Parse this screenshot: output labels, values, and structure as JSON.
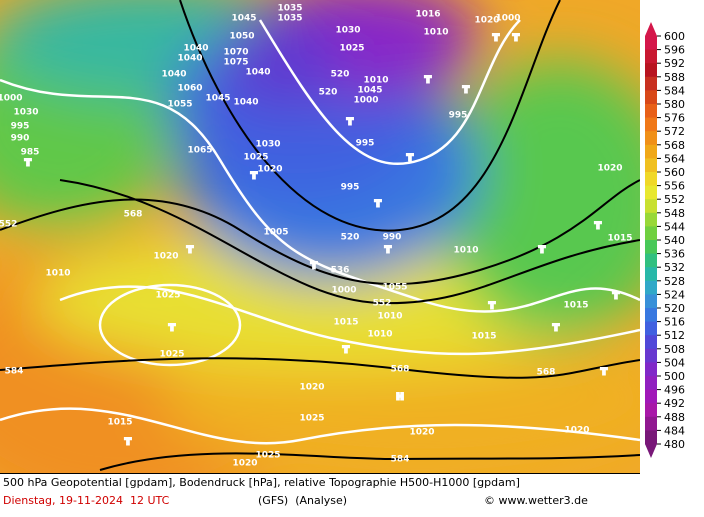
{
  "map": {
    "labels": [
      "1035",
      "1035",
      "1045",
      "1050",
      "1040",
      "1040",
      "1070",
      "1075",
      "1040",
      "1040",
      "1060",
      "1055",
      "1045",
      "1040",
      "1030",
      "1025",
      "520",
      "520",
      "1010",
      "1045",
      "1000",
      "1016",
      "1010",
      "1020",
      "1000",
      "995",
      "1000",
      "1030",
      "995",
      "990",
      "985",
      "1065",
      "1030",
      "1025",
      "1020",
      "995",
      "995",
      "1020",
      "568",
      "552",
      "1005",
      "520",
      "990",
      "1020",
      "1010",
      "1010",
      "536",
      "1000",
      "552",
      "1055",
      "1010",
      "1025",
      "1025",
      "1015",
      "1015",
      "1015",
      "1015",
      "1010",
      "568",
      "568",
      "584",
      "1020",
      "1025",
      "1020",
      "1020",
      "1015",
      "1025",
      "1020",
      "584",
      "T",
      "T",
      "T",
      "T",
      "T",
      "T",
      "T",
      "T",
      "T",
      "T",
      "T",
      "T",
      "T",
      "T",
      "T",
      "T",
      "T",
      "T",
      "T",
      "H",
      "T",
      "T"
    ]
  },
  "colorbar": {
    "labels": [
      600,
      596,
      592,
      588,
      584,
      580,
      576,
      572,
      568,
      564,
      560,
      556,
      552,
      548,
      544,
      540,
      536,
      532,
      528,
      524,
      520,
      516,
      512,
      508,
      504,
      500,
      496,
      492,
      488,
      484,
      480
    ],
    "colors": [
      "#d4174a",
      "#c81830",
      "#b81420",
      "#c83020",
      "#d84818",
      "#e86018",
      "#f07818",
      "#f09018",
      "#f0a818",
      "#f0c020",
      "#f0d828",
      "#e8e830",
      "#c8e030",
      "#98d838",
      "#70d040",
      "#48c858",
      "#30c080",
      "#28b8a8",
      "#30a8c8",
      "#3890d8",
      "#3878e0",
      "#4060e0",
      "#5048d8",
      "#6838d0",
      "#8028c8",
      "#9020c0",
      "#a018b8",
      "#a818a8",
      "#901890",
      "#781878"
    ]
  },
  "footer": {
    "line1": "500 hPa Geopotential [gpdam], Bodendruck [hPa], relative Topographie H500-H1000 [gpdam]",
    "date": "Dienstag, 19-11-2024  12 UTC",
    "model": "(GFS)  (Analyse)",
    "credit": "© www.wetter3.de"
  }
}
